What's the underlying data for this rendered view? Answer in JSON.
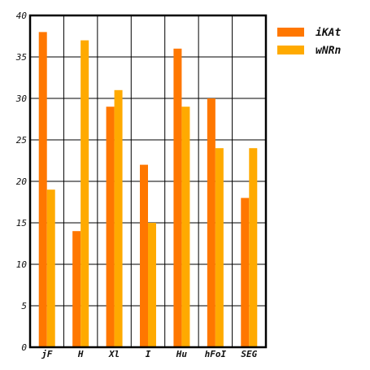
{
  "chart_data": {
    "type": "bar",
    "title": "",
    "xlabel": "",
    "ylabel": "",
    "categories": [
      "jF",
      "H",
      "Xl",
      "I",
      "Hu",
      "hFoI",
      "SEG"
    ],
    "series": [
      {
        "name": "iKAt",
        "color": "#ff7700",
        "values": [
          38,
          14,
          29,
          22,
          36,
          30,
          18
        ]
      },
      {
        "name": "wNRn",
        "color": "#ffaa00",
        "values": [
          19,
          37,
          31,
          15,
          29,
          24,
          24
        ]
      }
    ],
    "ylim": [
      0,
      40
    ],
    "yticks": [
      0,
      5,
      10,
      15,
      20,
      25,
      30,
      35,
      40
    ],
    "grid": true,
    "legend_position": "top-right"
  }
}
